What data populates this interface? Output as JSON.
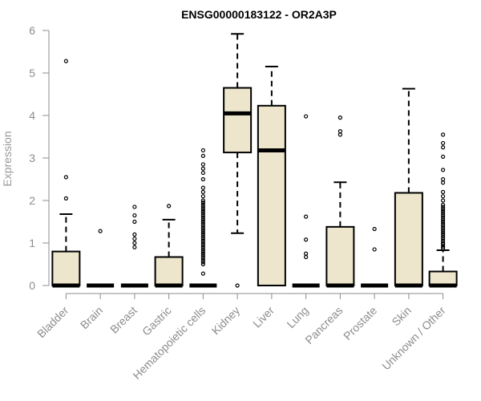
{
  "chart_data": {
    "type": "boxplot",
    "title": "ENSG00000183122 - OR2A3P",
    "xlabel": "",
    "ylabel": "Expression",
    "ylim": [
      0,
      6
    ],
    "yticks": [
      0,
      1,
      2,
      3,
      4,
      5,
      6
    ],
    "grid": false,
    "legend": "none",
    "box_fill": "#ede6cd",
    "categories": [
      "Bladder",
      "Brain",
      "Breast",
      "Gastric",
      "Hematopoietic cells",
      "Kidney",
      "Liver",
      "Lung",
      "Pancreas",
      "Prostate",
      "Skin",
      "Unknown / Other"
    ],
    "boxes": [
      {
        "q1": 0,
        "median": 0,
        "q3": 0.8,
        "whisker_low": 0,
        "whisker_high": 1.68,
        "outliers": [
          2.05,
          2.55,
          5.28
        ]
      },
      {
        "q1": 0,
        "median": 0,
        "q3": 0,
        "whisker_low": 0,
        "whisker_high": 0,
        "outliers": [
          1.28
        ]
      },
      {
        "q1": 0,
        "median": 0,
        "q3": 0,
        "whisker_low": 0,
        "whisker_high": 0,
        "outliers": [
          0.9,
          1.0,
          1.1,
          1.2,
          1.5,
          1.65,
          1.85
        ]
      },
      {
        "q1": 0,
        "median": 0,
        "q3": 0.67,
        "whisker_low": 0,
        "whisker_high": 1.55,
        "outliers": [
          1.87
        ]
      },
      {
        "q1": 0,
        "median": 0,
        "q3": 0,
        "whisker_low": 0,
        "whisker_high": 0,
        "outliers": [
          0.28,
          0.5,
          0.55,
          0.6,
          0.65,
          0.7,
          0.75,
          0.8,
          0.85,
          0.9,
          0.95,
          1.0,
          1.05,
          1.1,
          1.15,
          1.2,
          1.25,
          1.3,
          1.35,
          1.4,
          1.45,
          1.5,
          1.55,
          1.6,
          1.65,
          1.7,
          1.75,
          1.8,
          1.85,
          1.9,
          1.95,
          2.0,
          2.1,
          2.2,
          2.3,
          2.5,
          2.65,
          2.75,
          2.85,
          3.05,
          3.18
        ]
      },
      {
        "q1": 3.13,
        "median": 4.05,
        "q3": 4.65,
        "whisker_low": 1.23,
        "whisker_high": 5.92,
        "outliers": [
          0
        ]
      },
      {
        "q1": 0,
        "median": 3.18,
        "q3": 4.23,
        "whisker_low": 0,
        "whisker_high": 5.15,
        "outliers": []
      },
      {
        "q1": 0,
        "median": 0,
        "q3": 0,
        "whisker_low": 0,
        "whisker_high": 0,
        "outliers": [
          0.67,
          0.75,
          1.08,
          1.62,
          3.98
        ]
      },
      {
        "q1": 0,
        "median": 0,
        "q3": 1.38,
        "whisker_low": 0,
        "whisker_high": 2.43,
        "outliers": [
          3.55,
          3.63,
          3.95
        ]
      },
      {
        "q1": 0,
        "median": 0,
        "q3": 0,
        "whisker_low": 0,
        "whisker_high": 0,
        "outliers": [
          0.85,
          1.33
        ]
      },
      {
        "q1": 0,
        "median": 0,
        "q3": 2.18,
        "whisker_low": 0,
        "whisker_high": 4.63,
        "outliers": []
      },
      {
        "q1": 0,
        "median": 0,
        "q3": 0.33,
        "whisker_low": 0,
        "whisker_high": 0.83,
        "outliers": [
          0.88,
          0.92,
          0.97,
          1.0,
          1.05,
          1.1,
          1.15,
          1.2,
          1.25,
          1.3,
          1.35,
          1.4,
          1.45,
          1.5,
          1.55,
          1.6,
          1.65,
          1.7,
          1.75,
          1.8,
          1.85,
          1.9,
          2.0,
          2.1,
          2.2,
          2.42,
          2.5,
          2.72,
          3.03,
          3.25,
          3.35,
          3.55
        ]
      }
    ]
  }
}
